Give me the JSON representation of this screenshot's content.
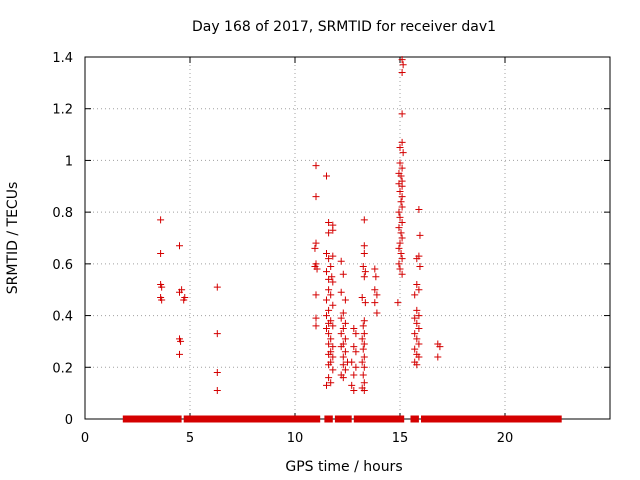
{
  "chart_data": {
    "type": "scatter",
    "title": "Day 168 of 2017, SRMTID for receiver dav1",
    "xlabel": "GPS time / hours",
    "ylabel": "SRMTID / TECUs",
    "xlim": [
      0,
      25
    ],
    "ylim": [
      0,
      1.4
    ],
    "xticks": [
      0,
      5,
      10,
      15,
      20
    ],
    "yticks": [
      0,
      0.2,
      0.4,
      0.6,
      0.8,
      1,
      1.2,
      1.4
    ],
    "ytick_labels": [
      "0",
      "0.2",
      "0.4",
      "0.6",
      "0.8",
      "1",
      "1.2",
      "1.4"
    ],
    "grid": true,
    "marker": "plus",
    "series_color": "#d40000",
    "baseline": {
      "y": 0,
      "segments": [
        [
          1.8,
          4.6
        ],
        [
          4.7,
          11.2
        ],
        [
          11.4,
          11.8
        ],
        [
          11.9,
          12.7
        ],
        [
          12.8,
          15.2
        ],
        [
          15.5,
          15.9
        ],
        [
          16.0,
          22.7
        ]
      ]
    },
    "series": [
      {
        "name": "SRMTID",
        "points": [
          [
            3.6,
            0.77
          ],
          [
            3.6,
            0.64
          ],
          [
            3.6,
            0.52
          ],
          [
            3.65,
            0.51
          ],
          [
            3.6,
            0.47
          ],
          [
            3.65,
            0.46
          ],
          [
            4.5,
            0.67
          ],
          [
            4.5,
            0.49
          ],
          [
            4.6,
            0.5
          ],
          [
            4.7,
            0.46
          ],
          [
            4.75,
            0.47
          ],
          [
            4.5,
            0.31
          ],
          [
            4.55,
            0.3
          ],
          [
            4.5,
            0.25
          ],
          [
            6.3,
            0.51
          ],
          [
            6.3,
            0.33
          ],
          [
            6.3,
            0.18
          ],
          [
            6.3,
            0.11
          ],
          [
            11.0,
            0.98
          ],
          [
            11.0,
            0.86
          ],
          [
            11.0,
            0.68
          ],
          [
            10.95,
            0.66
          ],
          [
            11.0,
            0.6
          ],
          [
            10.95,
            0.59
          ],
          [
            11.05,
            0.58
          ],
          [
            11.0,
            0.48
          ],
          [
            11.0,
            0.39
          ],
          [
            11.0,
            0.36
          ],
          [
            11.5,
            0.94
          ],
          [
            11.6,
            0.76
          ],
          [
            11.8,
            0.75
          ],
          [
            11.6,
            0.72
          ],
          [
            11.8,
            0.73
          ],
          [
            11.5,
            0.64
          ],
          [
            11.6,
            0.62
          ],
          [
            11.8,
            0.63
          ],
          [
            11.7,
            0.59
          ],
          [
            11.5,
            0.57
          ],
          [
            11.75,
            0.55
          ],
          [
            11.6,
            0.54
          ],
          [
            11.8,
            0.53
          ],
          [
            11.6,
            0.5
          ],
          [
            11.7,
            0.48
          ],
          [
            11.5,
            0.46
          ],
          [
            11.8,
            0.44
          ],
          [
            11.6,
            0.42
          ],
          [
            11.5,
            0.4
          ],
          [
            11.7,
            0.38
          ],
          [
            11.6,
            0.37
          ],
          [
            11.8,
            0.36
          ],
          [
            11.5,
            0.35
          ],
          [
            11.6,
            0.33
          ],
          [
            11.7,
            0.31
          ],
          [
            11.6,
            0.29
          ],
          [
            11.8,
            0.28
          ],
          [
            11.7,
            0.26
          ],
          [
            11.6,
            0.25
          ],
          [
            11.8,
            0.24
          ],
          [
            11.7,
            0.22
          ],
          [
            11.6,
            0.21
          ],
          [
            11.8,
            0.19
          ],
          [
            11.6,
            0.16
          ],
          [
            11.7,
            0.14
          ],
          [
            11.5,
            0.13
          ],
          [
            12.2,
            0.61
          ],
          [
            12.3,
            0.56
          ],
          [
            12.2,
            0.49
          ],
          [
            12.4,
            0.46
          ],
          [
            12.3,
            0.41
          ],
          [
            12.2,
            0.39
          ],
          [
            12.4,
            0.37
          ],
          [
            12.3,
            0.35
          ],
          [
            12.2,
            0.33
          ],
          [
            12.4,
            0.31
          ],
          [
            12.3,
            0.29
          ],
          [
            12.2,
            0.28
          ],
          [
            12.4,
            0.26
          ],
          [
            12.3,
            0.24
          ],
          [
            12.5,
            0.22
          ],
          [
            12.3,
            0.21
          ],
          [
            12.4,
            0.19
          ],
          [
            12.2,
            0.17
          ],
          [
            12.3,
            0.16
          ],
          [
            12.8,
            0.35
          ],
          [
            12.9,
            0.33
          ],
          [
            12.8,
            0.28
          ],
          [
            12.9,
            0.26
          ],
          [
            12.7,
            0.22
          ],
          [
            12.9,
            0.2
          ],
          [
            12.8,
            0.17
          ],
          [
            12.7,
            0.13
          ],
          [
            12.8,
            0.11
          ],
          [
            13.3,
            0.77
          ],
          [
            13.3,
            0.67
          ],
          [
            13.3,
            0.64
          ],
          [
            13.25,
            0.59
          ],
          [
            13.35,
            0.57
          ],
          [
            13.3,
            0.55
          ],
          [
            13.2,
            0.47
          ],
          [
            13.35,
            0.45
          ],
          [
            13.3,
            0.38
          ],
          [
            13.25,
            0.36
          ],
          [
            13.3,
            0.33
          ],
          [
            13.2,
            0.31
          ],
          [
            13.3,
            0.29
          ],
          [
            13.25,
            0.27
          ],
          [
            13.3,
            0.24
          ],
          [
            13.2,
            0.22
          ],
          [
            13.3,
            0.2
          ],
          [
            13.25,
            0.17
          ],
          [
            13.3,
            0.14
          ],
          [
            13.2,
            0.12
          ],
          [
            13.3,
            0.11
          ],
          [
            13.8,
            0.58
          ],
          [
            13.85,
            0.55
          ],
          [
            13.8,
            0.5
          ],
          [
            13.9,
            0.48
          ],
          [
            13.8,
            0.45
          ],
          [
            13.9,
            0.41
          ],
          [
            15.1,
            1.39
          ],
          [
            15.15,
            1.37
          ],
          [
            15.1,
            1.34
          ],
          [
            15.1,
            1.18
          ],
          [
            15.1,
            1.07
          ],
          [
            15.0,
            1.05
          ],
          [
            15.15,
            1.03
          ],
          [
            15.0,
            0.99
          ],
          [
            15.1,
            0.97
          ],
          [
            14.95,
            0.95
          ],
          [
            15.05,
            0.94
          ],
          [
            15.1,
            0.92
          ],
          [
            14.95,
            0.91
          ],
          [
            15.1,
            0.9
          ],
          [
            15.0,
            0.88
          ],
          [
            15.1,
            0.86
          ],
          [
            15.05,
            0.84
          ],
          [
            15.1,
            0.82
          ],
          [
            14.95,
            0.8
          ],
          [
            15.0,
            0.78
          ],
          [
            15.1,
            0.76
          ],
          [
            14.95,
            0.74
          ],
          [
            15.05,
            0.72
          ],
          [
            15.1,
            0.7
          ],
          [
            15.0,
            0.68
          ],
          [
            14.95,
            0.66
          ],
          [
            15.05,
            0.64
          ],
          [
            15.1,
            0.62
          ],
          [
            14.95,
            0.6
          ],
          [
            15.0,
            0.58
          ],
          [
            15.1,
            0.56
          ],
          [
            14.9,
            0.45
          ],
          [
            15.9,
            0.81
          ],
          [
            15.95,
            0.71
          ],
          [
            15.9,
            0.63
          ],
          [
            15.8,
            0.62
          ],
          [
            15.95,
            0.59
          ],
          [
            15.8,
            0.52
          ],
          [
            15.9,
            0.5
          ],
          [
            15.7,
            0.48
          ],
          [
            15.8,
            0.42
          ],
          [
            15.9,
            0.4
          ],
          [
            15.7,
            0.39
          ],
          [
            15.8,
            0.37
          ],
          [
            15.9,
            0.35
          ],
          [
            15.7,
            0.33
          ],
          [
            15.8,
            0.31
          ],
          [
            15.9,
            0.29
          ],
          [
            15.7,
            0.27
          ],
          [
            15.8,
            0.25
          ],
          [
            15.9,
            0.24
          ],
          [
            15.7,
            0.22
          ],
          [
            15.8,
            0.21
          ],
          [
            16.8,
            0.29
          ],
          [
            16.9,
            0.28
          ],
          [
            16.8,
            0.24
          ]
        ]
      }
    ]
  }
}
